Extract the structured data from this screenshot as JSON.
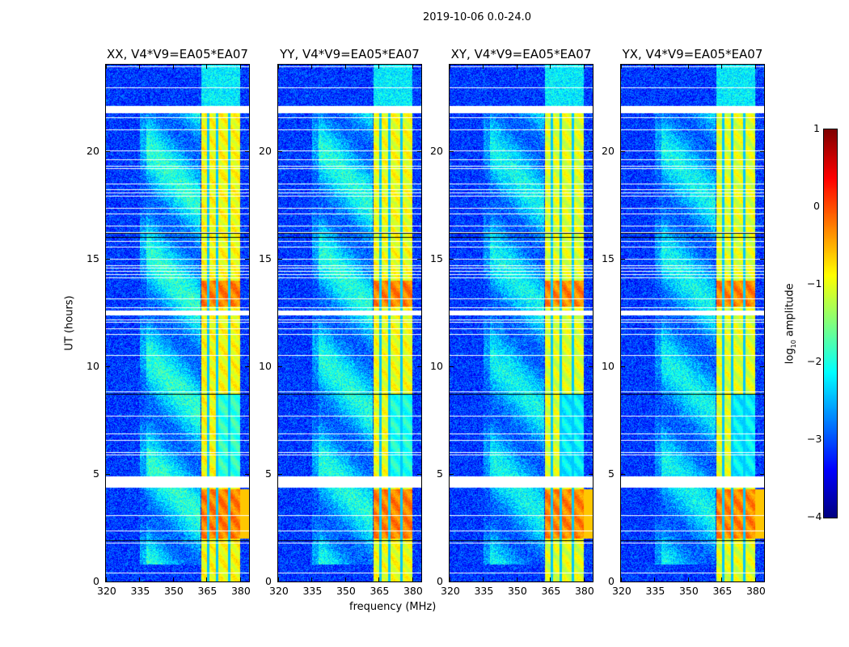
{
  "suptitle": "2019-10-06 0.0-24.0",
  "chart_data": {
    "type": "heatmap",
    "title": "2019-10-06 0.0-24.0",
    "xlabel": "frequency (MHz)",
    "ylabel": "UT (hours)",
    "xlim": [
      320,
      384
    ],
    "ylim": [
      0,
      24
    ],
    "xticks": [
      "320",
      "335",
      "350",
      "365",
      "380"
    ],
    "yticks": [
      "0",
      "5",
      "10",
      "15",
      "20"
    ],
    "panels": [
      {
        "title": "XX, V4*V9=EA05*EA07",
        "strength": 1.0
      },
      {
        "title": "YY, V4*V9=EA05*EA07",
        "strength": 0.95
      },
      {
        "title": "XY, V4*V9=EA05*EA07",
        "strength": 0.85
      },
      {
        "title": "YX, V4*V9=EA05*EA07",
        "strength": 0.85
      }
    ],
    "colorbar": {
      "label_prefix": "log",
      "label_sub": "10",
      "label_suffix": " amplitude",
      "colormap": "jet",
      "range": [
        -4,
        1
      ],
      "ticks": [
        "1",
        "0",
        "−1",
        "−2",
        "−3",
        "−4"
      ]
    },
    "features": {
      "broadband_emission_mhz": [
        335,
        362
      ],
      "rfi_band_mhz": [
        362.5,
        380
      ],
      "rfi_notch_lines_mhz": [
        365.5,
        369.5,
        375
      ],
      "strong_rfi_hours": [
        [
          2.0,
          4.3
        ],
        [
          12.8,
          14.0
        ]
      ],
      "flagged_gap_hours": [
        [
          4.4,
          4.9
        ],
        [
          12.4,
          12.6
        ],
        [
          21.8,
          22.1
        ]
      ],
      "black_line_hours": [
        1.9,
        8.7,
        16.2,
        16.0
      ]
    }
  }
}
